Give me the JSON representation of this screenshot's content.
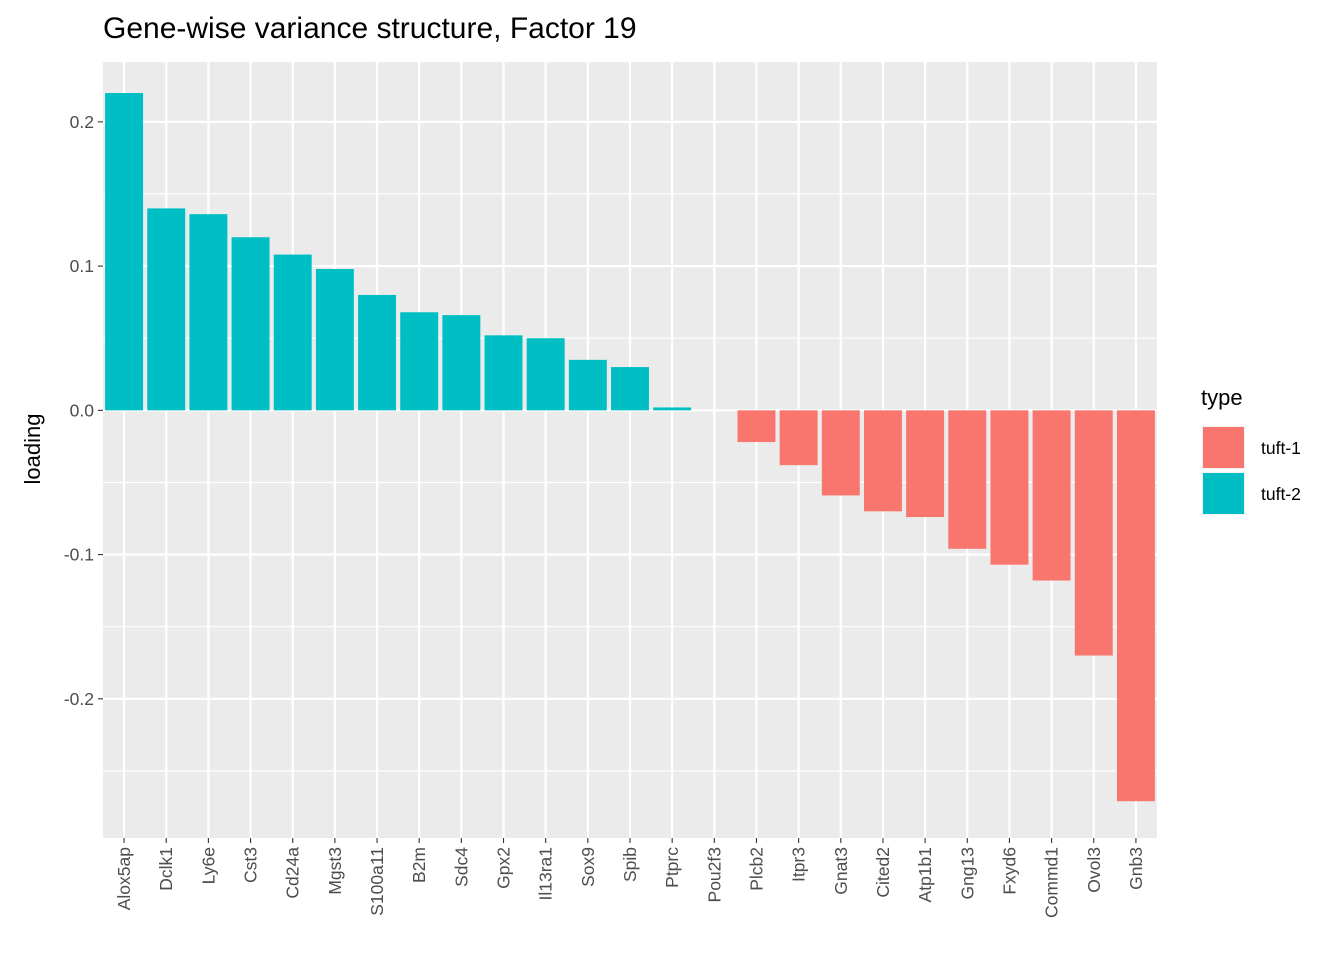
{
  "chart_data": {
    "type": "bar",
    "title": "Gene-wise variance structure, Factor 19",
    "xlabel": "",
    "ylabel": "loading",
    "ylim": [
      -0.2965,
      0.2415
    ],
    "y_ticks": [
      -0.2,
      -0.1,
      0.0,
      0.1,
      0.2
    ],
    "y_tick_labels": [
      "-0.2",
      "-0.1",
      "0.0",
      "0.1",
      "0.2"
    ],
    "grid": true,
    "legend": {
      "title": "type",
      "position": "right",
      "entries": [
        {
          "label": "tuft-1",
          "color": "#F8766D"
        },
        {
          "label": "tuft-2",
          "color": "#00BFC4"
        }
      ]
    },
    "colors": {
      "tuft-1": "#F8766D",
      "tuft-2": "#00BFC4",
      "panel_bg": "#EBEBEB",
      "grid": "#FFFFFF"
    },
    "categories": [
      "Alox5ap",
      "Dclk1",
      "Ly6e",
      "Cst3",
      "Cd24a",
      "Mgst3",
      "S100a11",
      "B2m",
      "Sdc4",
      "Gpx2",
      "Il13ra1",
      "Sox9",
      "Spib",
      "Ptprc",
      "Pou2f3",
      "Plcb2",
      "Itpr3",
      "Gnat3",
      "Cited2",
      "Atp1b1",
      "Gng13",
      "Fxyd6",
      "Commd1",
      "Ovol3",
      "Gnb3"
    ],
    "values": [
      0.22,
      0.14,
      0.136,
      0.12,
      0.108,
      0.098,
      0.08,
      0.068,
      0.066,
      0.052,
      0.05,
      0.035,
      0.03,
      0.002,
      0.0,
      -0.022,
      -0.038,
      -0.059,
      -0.07,
      -0.074,
      -0.096,
      -0.107,
      -0.118,
      -0.17,
      -0.271
    ],
    "types": [
      "tuft-2",
      "tuft-2",
      "tuft-2",
      "tuft-2",
      "tuft-2",
      "tuft-2",
      "tuft-2",
      "tuft-2",
      "tuft-2",
      "tuft-2",
      "tuft-2",
      "tuft-2",
      "tuft-2",
      "tuft-2",
      "tuft-2",
      "tuft-1",
      "tuft-1",
      "tuft-1",
      "tuft-1",
      "tuft-1",
      "tuft-1",
      "tuft-1",
      "tuft-1",
      "tuft-1",
      "tuft-1"
    ]
  }
}
